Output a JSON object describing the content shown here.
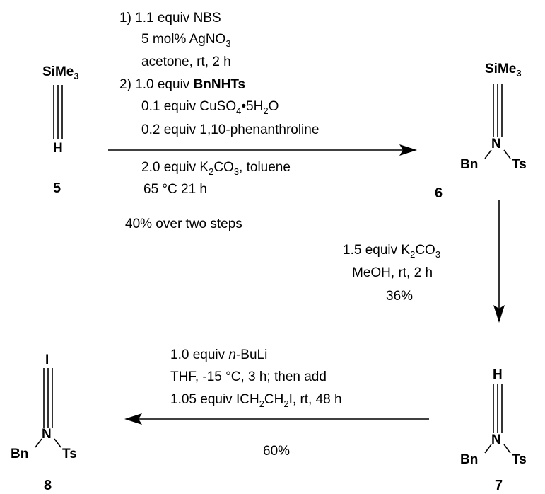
{
  "compounds": {
    "c5": {
      "top": "SiMe",
      "top_sub": "3",
      "bottom": "H",
      "label": "5"
    },
    "c6": {
      "top": "SiMe",
      "top_sub": "3",
      "n": "N",
      "bn": "Bn",
      "ts": "Ts",
      "label": "6"
    },
    "c7": {
      "top": "H",
      "n": "N",
      "bn": "Bn",
      "ts": "Ts",
      "label": "7"
    },
    "c8": {
      "top": "I",
      "n": "N",
      "bn": "Bn",
      "ts": "Ts",
      "label": "8"
    }
  },
  "step1": {
    "l1": "1) 1.1 equiv NBS",
    "l2": "5 mol% AgNO",
    "l2_sub": "3",
    "l3": "acetone, rt, 2 h",
    "l4_pre": "2) 1.0 equiv ",
    "l4_bold": "BnNHTs",
    "l5_pre": "0.1 equiv CuSO",
    "l5_sub1": "4",
    "l5_mid": "•5H",
    "l5_sub2": "2",
    "l5_post": "O",
    "l6": "0.2 equiv 1,10-phenanthroline",
    "l7_pre": "2.0 equiv K",
    "l7_sub": "2",
    "l7_mid": "CO",
    "l7_sub2": "3",
    "l7_post": ", toluene",
    "l8": "65 °C   21 h",
    "yield": "40% over two steps"
  },
  "step2": {
    "l1_pre": "1.5 equiv K",
    "l1_sub": "2",
    "l1_mid": "CO",
    "l1_sub2": "3",
    "l2": "MeOH, rt, 2 h",
    "yield": "36%"
  },
  "step3": {
    "l1_pre": "1.0 equiv ",
    "l1_it": "n",
    "l1_post": "-BuLi",
    "l2": "THF, -15 °C, 3 h; then add",
    "l3_pre": "1.05 equiv ICH",
    "l3_sub1": "2",
    "l3_mid": "CH",
    "l3_sub2": "2",
    "l3_post": "I, rt, 48 h",
    "yield": "60%"
  }
}
